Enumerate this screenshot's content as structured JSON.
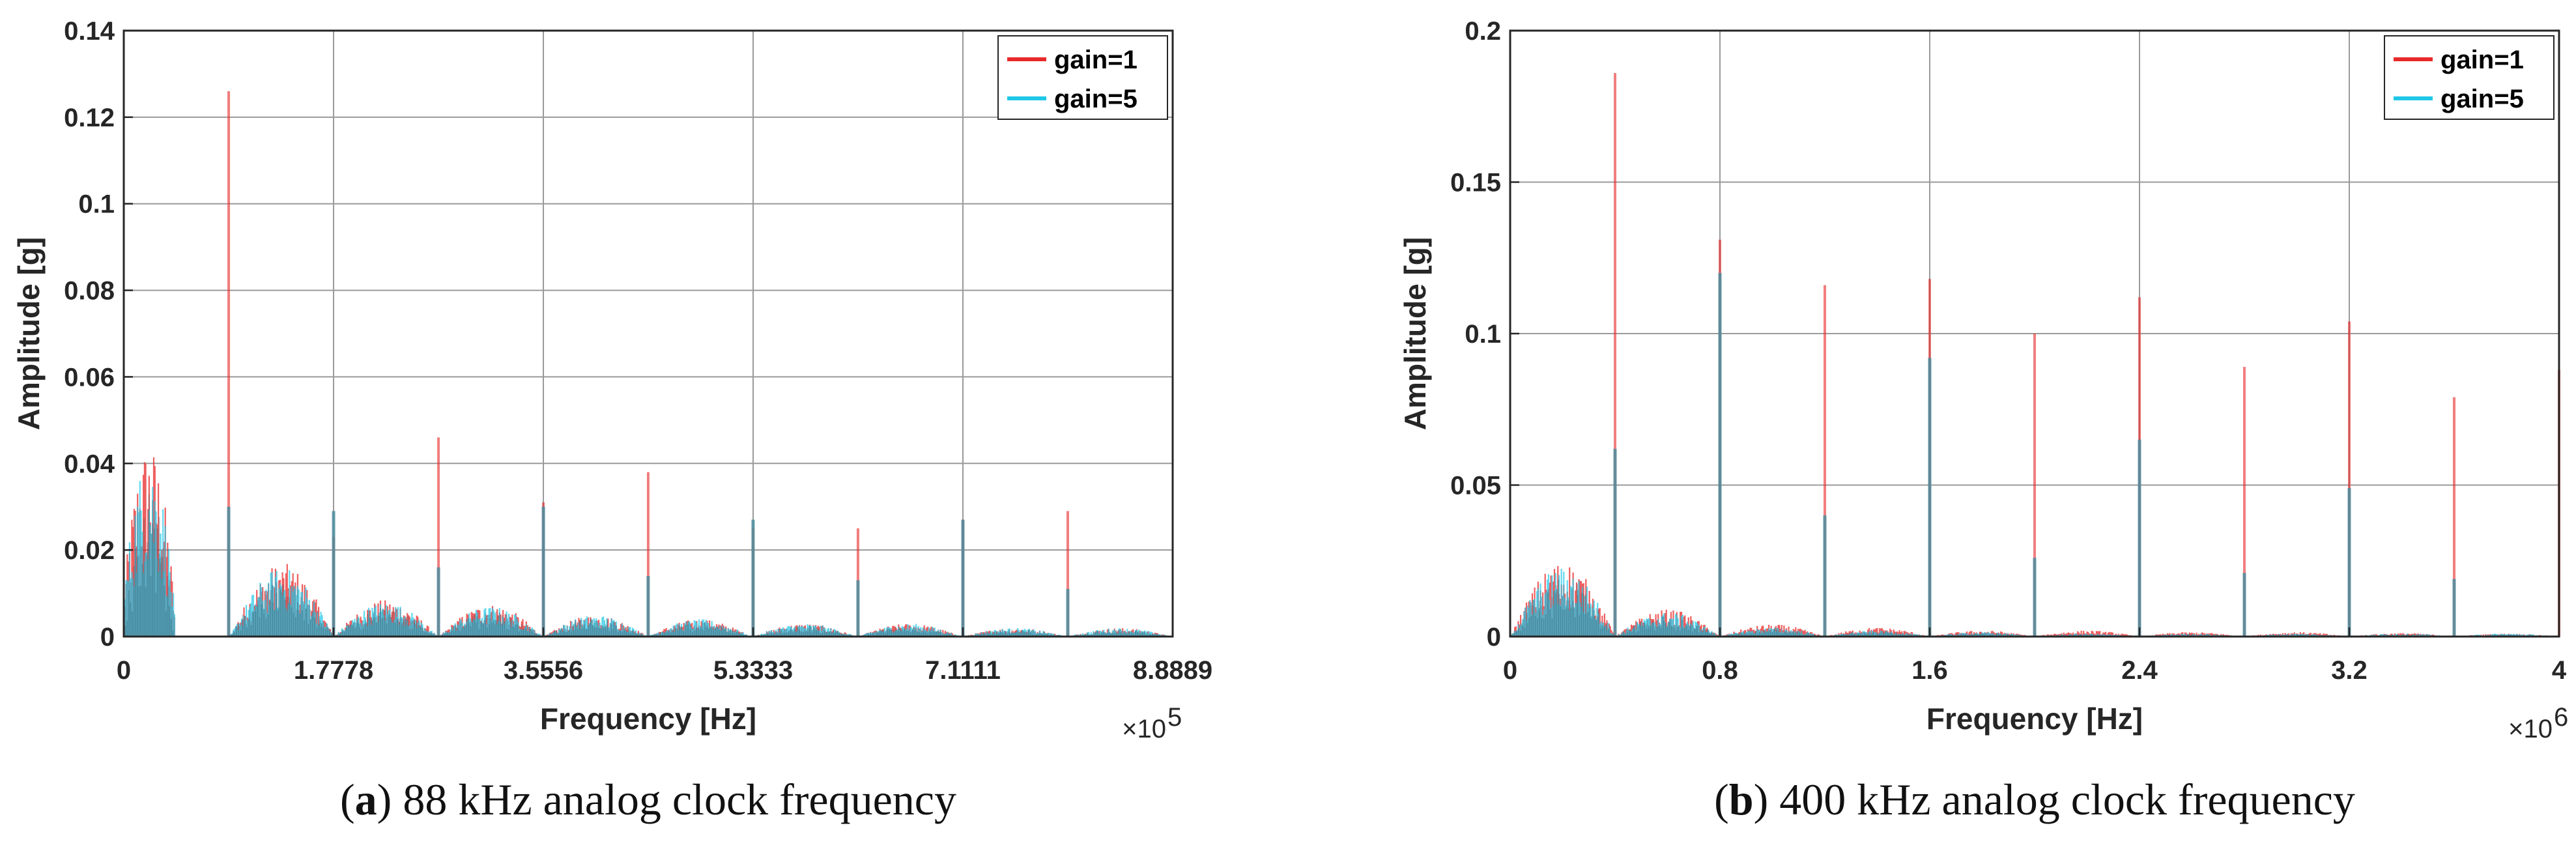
{
  "chart_data": [
    {
      "type": "line",
      "caption_letter": "a",
      "caption_text": "88 kHz analog clock frequency",
      "xlabel": "Frequency [Hz]",
      "ylabel": "Amplitude [g]",
      "x_multiplier_label": "×10",
      "x_multiplier_exp": "5",
      "xlim": [
        0,
        8.8889
      ],
      "ylim": [
        0,
        0.14
      ],
      "xticks": [
        0,
        1.7778,
        3.5556,
        5.3333,
        7.1111,
        8.8889
      ],
      "xtick_labels": [
        "0",
        "1.7778",
        "3.5556",
        "5.3333",
        "7.1111",
        "8.8889"
      ],
      "yticks": [
        0,
        0.02,
        0.04,
        0.06,
        0.08,
        0.1,
        0.12,
        0.14
      ],
      "ytick_labels": [
        "0",
        "0.02",
        "0.04",
        "0.06",
        "0.08",
        "0.1",
        "0.12",
        "0.14"
      ],
      "grid": true,
      "legend_position": "top-right",
      "series": [
        {
          "name": "gain=1",
          "color": "#e8292a",
          "peaks": [
            [
              0.889,
              0.126
            ],
            [
              1.778,
              0.023
            ],
            [
              2.667,
              0.046
            ],
            [
              3.556,
              0.031
            ],
            [
              4.444,
              0.038
            ],
            [
              5.333,
              0.025
            ],
            [
              6.222,
              0.025
            ],
            [
              7.111,
              0.027
            ],
            [
              8.0,
              0.029
            ]
          ],
          "lobes": [
            [
              0,
              0.43,
              0.045
            ],
            [
              0.9,
              0.88,
              0.017
            ],
            [
              1.78,
              0.88,
              0.0085
            ],
            [
              2.67,
              0.88,
              0.0075
            ],
            [
              3.56,
              0.88,
              0.005
            ],
            [
              4.44,
              0.88,
              0.004
            ],
            [
              5.33,
              0.88,
              0.003
            ],
            [
              6.22,
              0.88,
              0.003
            ],
            [
              7.11,
              0.88,
              0.002
            ],
            [
              8.0,
              0.88,
              0.002
            ]
          ]
        },
        {
          "name": "gain=5",
          "color": "#1fc8e8",
          "peaks": [
            [
              0.889,
              0.03
            ],
            [
              1.778,
              0.029
            ],
            [
              2.667,
              0.016
            ],
            [
              3.556,
              0.03
            ],
            [
              4.444,
              0.014
            ],
            [
              5.333,
              0.027
            ],
            [
              6.222,
              0.013
            ],
            [
              7.111,
              0.027
            ],
            [
              8.0,
              0.011
            ]
          ],
          "lobes": [
            [
              0,
              0.43,
              0.042
            ],
            [
              0.9,
              0.88,
              0.016
            ],
            [
              1.78,
              0.88,
              0.008
            ],
            [
              2.67,
              0.88,
              0.007
            ],
            [
              3.56,
              0.88,
              0.005
            ],
            [
              4.44,
              0.88,
              0.004
            ],
            [
              5.33,
              0.88,
              0.003
            ],
            [
              6.22,
              0.88,
              0.003
            ],
            [
              7.11,
              0.88,
              0.002
            ],
            [
              8.0,
              0.88,
              0.002
            ]
          ]
        }
      ]
    },
    {
      "type": "line",
      "caption_letter": "b",
      "caption_text": "400 kHz analog clock frequency",
      "xlabel": "Frequency [Hz]",
      "ylabel": "Amplitude [g]",
      "x_multiplier_label": "×10",
      "x_multiplier_exp": "6",
      "xlim": [
        0,
        4
      ],
      "ylim": [
        0,
        0.2
      ],
      "xticks": [
        0,
        0.8,
        1.6,
        2.4,
        3.2,
        4
      ],
      "xtick_labels": [
        "0",
        "0.8",
        "1.6",
        "2.4",
        "3.2",
        "4"
      ],
      "yticks": [
        0,
        0.05,
        0.1,
        0.15,
        0.2
      ],
      "ytick_labels": [
        "0",
        "0.05",
        "0.1",
        "0.15",
        "0.2"
      ],
      "grid": true,
      "legend_position": "top-right",
      "series": [
        {
          "name": "gain=1",
          "color": "#e8292a",
          "peaks": [
            [
              0.4,
              0.186
            ],
            [
              0.8,
              0.131
            ],
            [
              1.2,
              0.116
            ],
            [
              1.6,
              0.118
            ],
            [
              2.0,
              0.1
            ],
            [
              2.4,
              0.112
            ],
            [
              2.8,
              0.089
            ],
            [
              3.2,
              0.104
            ],
            [
              3.6,
              0.079
            ],
            [
              4.0,
              0.088
            ]
          ],
          "lobes": [
            [
              0,
              0.4,
              0.025
            ],
            [
              0.4,
              0.4,
              0.009
            ],
            [
              0.8,
              0.4,
              0.004
            ],
            [
              1.2,
              0.4,
              0.003
            ],
            [
              1.6,
              0.4,
              0.002
            ],
            [
              2.0,
              0.4,
              0.002
            ],
            [
              2.4,
              0.4,
              0.0015
            ],
            [
              2.8,
              0.4,
              0.0015
            ],
            [
              3.2,
              0.4,
              0.0012
            ],
            [
              3.6,
              0.4,
              0.001
            ]
          ]
        },
        {
          "name": "gain=5",
          "color": "#1fc8e8",
          "peaks": [
            [
              0.4,
              0.062
            ],
            [
              0.8,
              0.12
            ],
            [
              1.2,
              0.04
            ],
            [
              1.6,
              0.092
            ],
            [
              2.0,
              0.026
            ],
            [
              2.4,
              0.065
            ],
            [
              2.8,
              0.021
            ],
            [
              3.2,
              0.049
            ],
            [
              3.6,
              0.019
            ],
            [
              4.0,
              0.0
            ]
          ],
          "lobes": [
            [
              0,
              0.4,
              0.023
            ],
            [
              0.4,
              0.4,
              0.008
            ],
            [
              0.8,
              0.4,
              0.003
            ],
            [
              1.2,
              0.4,
              0.002
            ],
            [
              1.6,
              0.4,
              0.0015
            ],
            [
              2.0,
              0.4,
              0.001
            ],
            [
              2.4,
              0.4,
              0.001
            ],
            [
              2.8,
              0.4,
              0.001
            ],
            [
              3.2,
              0.4,
              0.001
            ],
            [
              3.6,
              0.4,
              0.001
            ]
          ]
        }
      ]
    }
  ]
}
